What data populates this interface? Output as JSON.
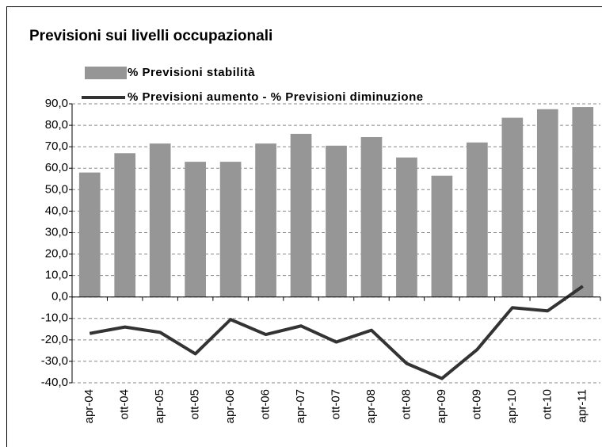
{
  "chart_data": {
    "type": "bar",
    "title": "Previsioni sui livelli occupazionali",
    "categories": [
      "apr-04",
      "ott-04",
      "apr-05",
      "ott-05",
      "apr-06",
      "ott-06",
      "apr-07",
      "ott-07",
      "apr-08",
      "ott-08",
      "apr-09",
      "ott-09",
      "apr-10",
      "ott-10",
      "apr-11"
    ],
    "series": [
      {
        "name": "% Previsioni stabilità",
        "type": "bar",
        "color": "#969696",
        "values": [
          58,
          67,
          71.5,
          63,
          63,
          71.5,
          76,
          70.5,
          74.5,
          65,
          56.5,
          72,
          83.5,
          87.5,
          88.5
        ]
      },
      {
        "name": "% Previsioni aumento - % Previsioni diminuzione",
        "type": "line",
        "color": "#333333",
        "values": [
          -17,
          -14,
          -16.5,
          -26.5,
          -10.5,
          -17.5,
          -13.5,
          -21,
          -15.5,
          -31,
          -38,
          -24.5,
          -5,
          -6.5,
          5
        ]
      }
    ],
    "ylim": [
      -40,
      90
    ],
    "yticks": [
      {
        "value": -40,
        "label": "-40,0"
      },
      {
        "value": -30,
        "label": "-30,0"
      },
      {
        "value": -20,
        "label": "-20,0"
      },
      {
        "value": -10,
        "label": "-10,0"
      },
      {
        "value": 0,
        "label": "0,0"
      },
      {
        "value": 10,
        "label": "10,0"
      },
      {
        "value": 20,
        "label": "20,0"
      },
      {
        "value": 30,
        "label": "30,0"
      },
      {
        "value": 40,
        "label": "40,0"
      },
      {
        "value": 50,
        "label": "50,0"
      },
      {
        "value": 60,
        "label": "60,0"
      },
      {
        "value": 70,
        "label": "70,0"
      },
      {
        "value": 80,
        "label": "80,0"
      },
      {
        "value": 90,
        "label": "90,0"
      }
    ],
    "grid": true
  }
}
